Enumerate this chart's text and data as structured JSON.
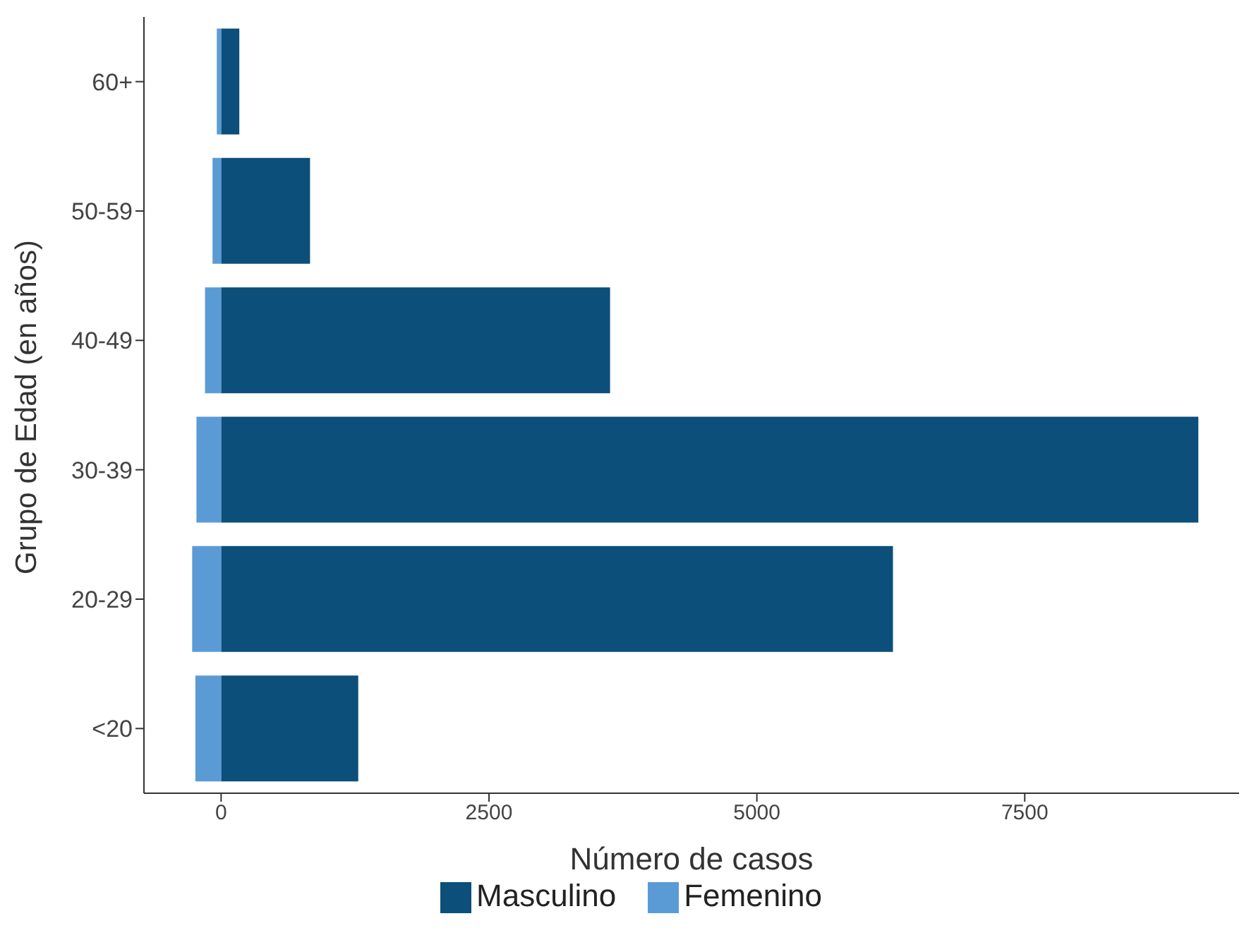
{
  "chart_data": {
    "type": "bar",
    "orientation": "horizontal",
    "stacked": true,
    "xlabel": "Número de casos",
    "ylabel": "Grupo de Edad (en años)",
    "categories": [
      "60+",
      "50-59",
      "40-49",
      "30-39",
      "20-29",
      "<20"
    ],
    "series": [
      {
        "name": "Masculino",
        "color": "#0b4f7a",
        "values": [
          170,
          830,
          3630,
          9120,
          6270,
          1280
        ]
      },
      {
        "name": "Femenino",
        "color": "#5b9bd5",
        "values": [
          -40,
          -80,
          -150,
          -230,
          -270,
          -240
        ]
      }
    ],
    "xlim": [
      -720,
      9500
    ],
    "xticks": [
      0,
      2500,
      5000,
      7500
    ],
    "grid": false,
    "legend": "bottom"
  }
}
